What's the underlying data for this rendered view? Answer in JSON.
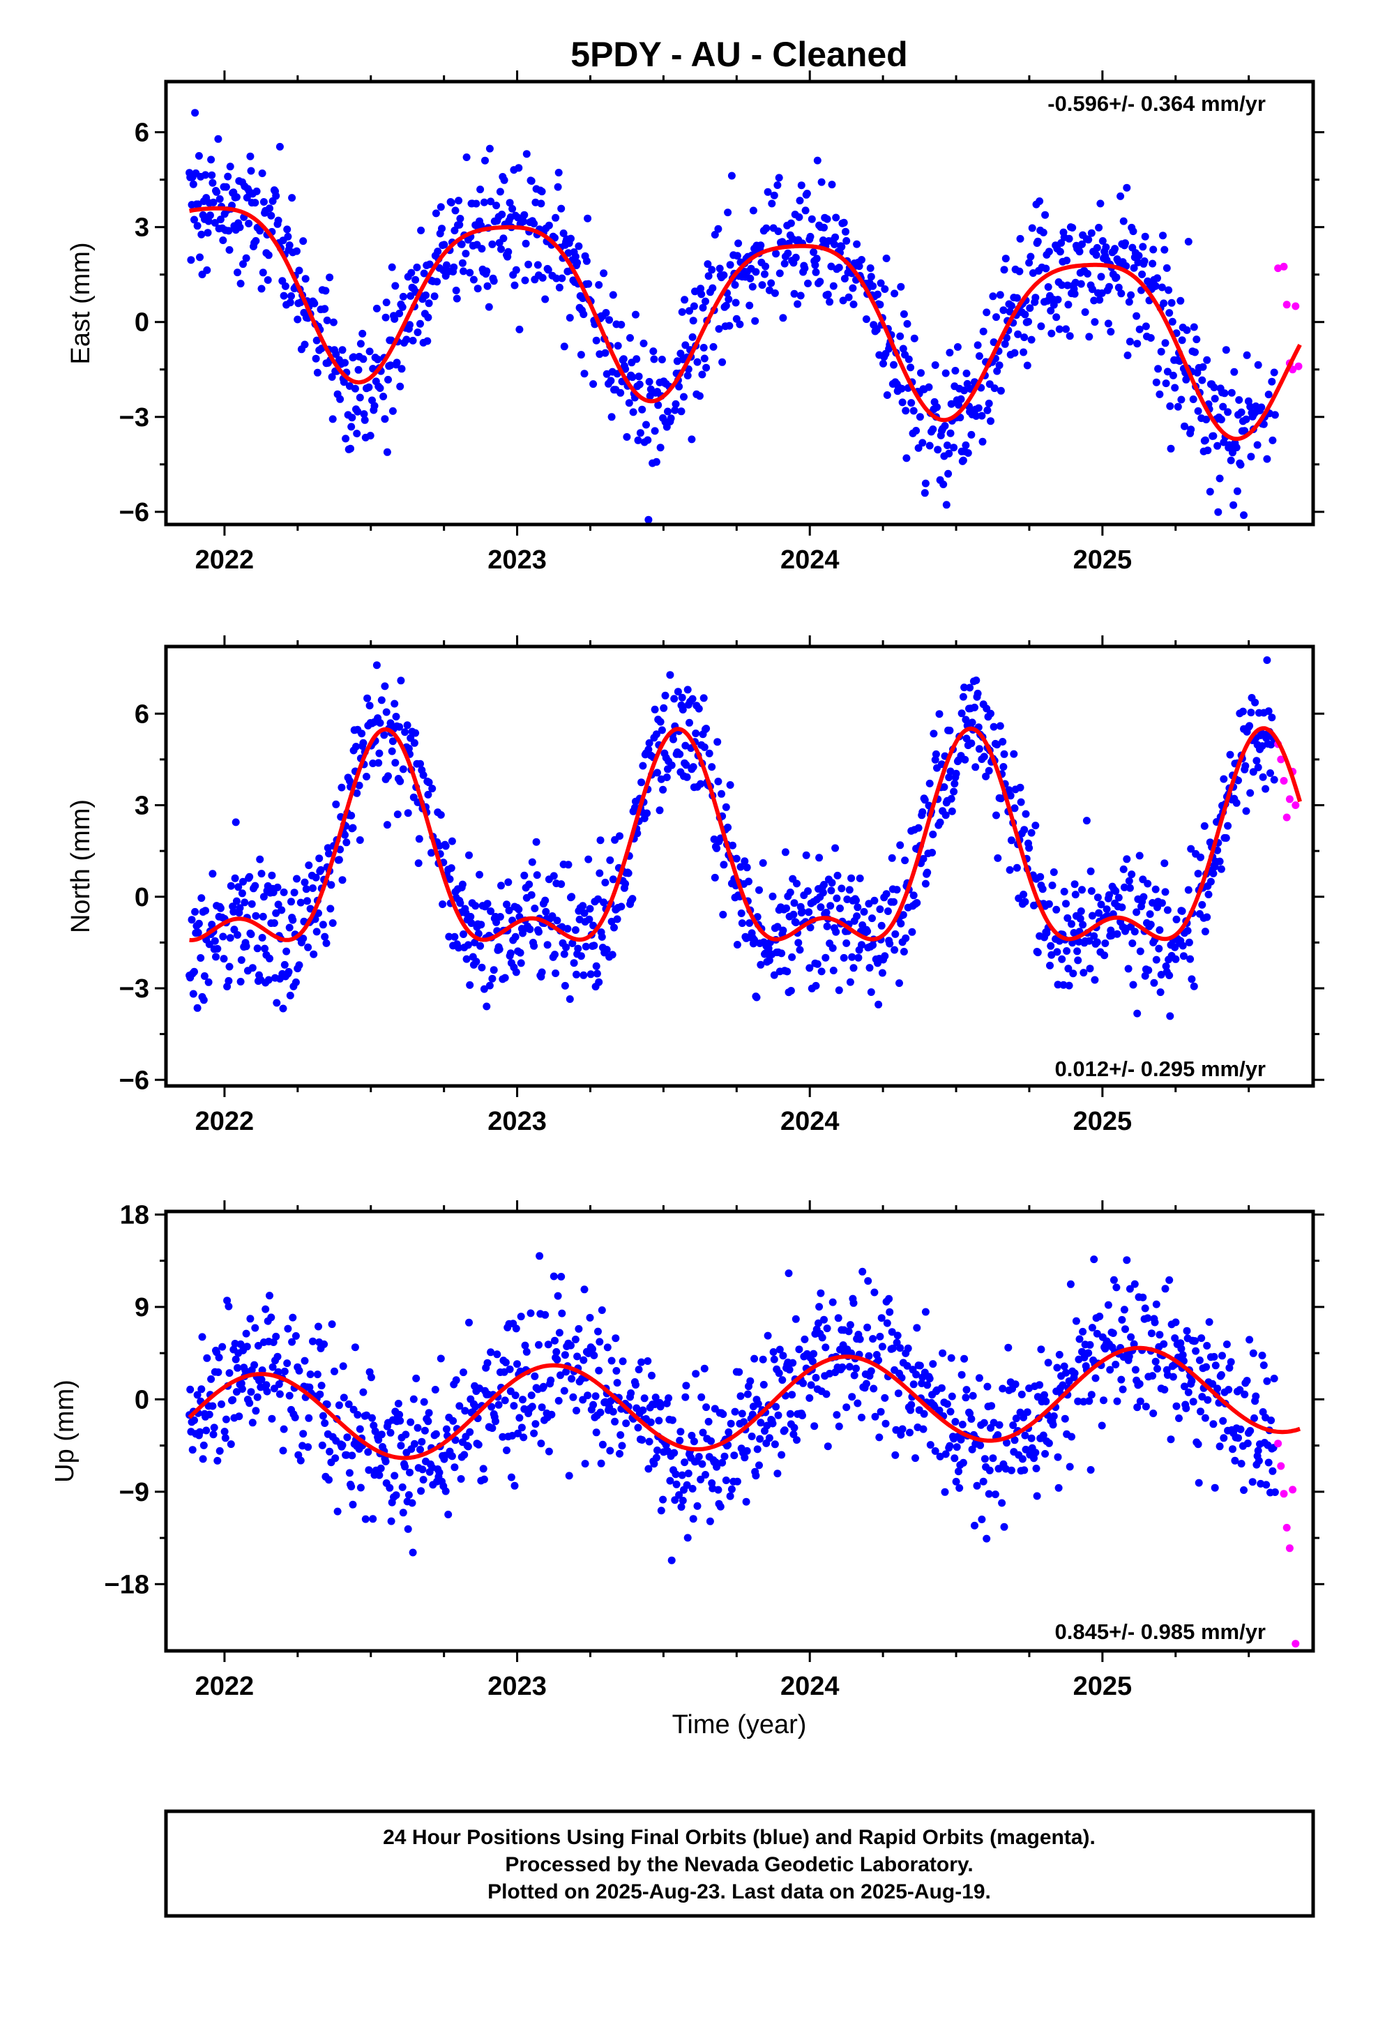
{
  "title": "5PDY  - AU - Cleaned",
  "x_axis": {
    "label": "Time (year)",
    "range": [
      2021.8,
      2025.72
    ],
    "ticks": [
      {
        "value": 2022,
        "label": "2022"
      },
      {
        "value": 2023,
        "label": "2023"
      },
      {
        "value": 2024,
        "label": "2024"
      },
      {
        "value": 2025,
        "label": "2025"
      }
    ]
  },
  "footer": {
    "lines": [
      "24 Hour Positions Using Final Orbits (blue) and Rapid Orbits (magenta).",
      "Processed by the Nevada Geodetic Laboratory.",
      "Plotted on 2025-Aug-23. Last data on 2025-Aug-19."
    ]
  },
  "colors": {
    "final_orbits": "#0000ff",
    "rapid_orbits": "#ff00ff",
    "fit": "#ff0000",
    "frame": "#000000"
  },
  "chart_data": [
    {
      "type": "scatter",
      "component": "east",
      "ylabel": "East (mm)",
      "ylim": [
        -6.4,
        7.6
      ],
      "yticks": [
        -6,
        -3,
        0,
        3,
        6
      ],
      "rate_label": "-0.596+/- 0.364 mm/yr",
      "rate_position": "top-right",
      "fit_model": {
        "offset": 0.5,
        "trend": -0.596,
        "annual_amp": 2.6,
        "annual_peak": 2022.96,
        "semi_amp": 0.55,
        "semi_peak": 2022.7
      },
      "fit_curve": [
        [
          2021.9,
          3.7
        ],
        [
          2022.0,
          3.7
        ],
        [
          2022.25,
          1.2
        ],
        [
          2022.5,
          -1.8
        ],
        [
          2022.75,
          -0.4
        ],
        [
          2023.0,
          3.2
        ],
        [
          2023.25,
          1.3
        ],
        [
          2023.5,
          -2.4
        ],
        [
          2023.75,
          -0.8
        ],
        [
          2024.0,
          2.6
        ],
        [
          2024.25,
          0.5
        ],
        [
          2024.5,
          -3.0
        ],
        [
          2024.75,
          -1.0
        ],
        [
          2025.0,
          2.0
        ],
        [
          2025.25,
          0.0
        ],
        [
          2025.55,
          -3.6
        ],
        [
          2025.68,
          -2.0
        ]
      ],
      "final_scatter_sd": 1.1,
      "rapid_points": [
        [
          2025.6,
          1.7
        ],
        [
          2025.62,
          1.75
        ],
        [
          2025.63,
          0.55
        ],
        [
          2025.64,
          -1.3
        ],
        [
          2025.65,
          -1.5
        ],
        [
          2025.66,
          0.5
        ],
        [
          2025.67,
          -1.4
        ]
      ]
    },
    {
      "type": "scatter",
      "component": "north",
      "ylabel": "North (mm)",
      "ylim": [
        -6.2,
        8.2
      ],
      "yticks": [
        -6,
        -3,
        0,
        3,
        6
      ],
      "rate_label": "0.012+/- 0.295 mm/yr",
      "rate_position": "bottom-right",
      "fit_model": {
        "offset": 0.9,
        "trend": 0.012,
        "annual_amp": 3.1,
        "annual_peak": 2022.55,
        "semi_amp": 1.5,
        "semi_peak": 2022.55
      },
      "fit_curve": [
        [
          2021.9,
          -2.0
        ],
        [
          2022.2,
          -1.7
        ],
        [
          2022.35,
          2.0
        ],
        [
          2022.55,
          5.5
        ],
        [
          2022.75,
          1.5
        ],
        [
          2022.9,
          -1.9
        ],
        [
          2023.2,
          -1.6
        ],
        [
          2023.35,
          2.0
        ],
        [
          2023.55,
          5.6
        ],
        [
          2023.75,
          1.5
        ],
        [
          2023.9,
          -1.9
        ],
        [
          2024.2,
          -1.6
        ],
        [
          2024.35,
          2.0
        ],
        [
          2024.55,
          5.5
        ],
        [
          2024.75,
          1.5
        ],
        [
          2024.9,
          -1.9
        ],
        [
          2025.2,
          -1.6
        ],
        [
          2025.35,
          2.0
        ],
        [
          2025.58,
          5.6
        ],
        [
          2025.68,
          4.0
        ]
      ],
      "final_scatter_sd": 1.05,
      "rapid_points": [
        [
          2025.6,
          5.0
        ],
        [
          2025.61,
          4.5
        ],
        [
          2025.62,
          3.8
        ],
        [
          2025.63,
          2.6
        ],
        [
          2025.64,
          3.2
        ],
        [
          2025.65,
          4.1
        ],
        [
          2025.66,
          3.0
        ]
      ]
    },
    {
      "type": "scatter",
      "component": "up",
      "ylabel": "Up (mm)",
      "ylim": [
        -24.5,
        18.3
      ],
      "yticks": [
        -18,
        -9,
        0,
        9,
        18
      ],
      "rate_label": "0.845+/- 0.985 mm/yr",
      "rate_position": "bottom-right",
      "fit_model": {
        "offset": -0.5,
        "trend": 0.845,
        "annual_amp": 4.3,
        "annual_peak": 2022.12,
        "semi_amp": 0.0,
        "semi_peak": 2022.12
      },
      "fit_curve": [
        [
          2021.9,
          -2.2
        ],
        [
          2022.1,
          3.4
        ],
        [
          2022.4,
          -3.0
        ],
        [
          2022.65,
          -5.2
        ],
        [
          2022.9,
          -1.0
        ],
        [
          2023.1,
          4.2
        ],
        [
          2023.4,
          -2.0
        ],
        [
          2023.6,
          -4.2
        ],
        [
          2023.9,
          0.0
        ],
        [
          2024.1,
          5.0
        ],
        [
          2024.4,
          -1.5
        ],
        [
          2024.6,
          -3.5
        ],
        [
          2024.9,
          1.0
        ],
        [
          2025.1,
          5.9
        ],
        [
          2025.4,
          0.5
        ],
        [
          2025.68,
          -2.6
        ]
      ],
      "final_scatter_sd": 3.6,
      "rapid_points": [
        [
          2025.6,
          -4.3
        ],
        [
          2025.61,
          -6.5
        ],
        [
          2025.62,
          -9.2
        ],
        [
          2025.63,
          -12.5
        ],
        [
          2025.64,
          -14.5
        ],
        [
          2025.65,
          -8.8
        ],
        [
          2025.66,
          -23.8
        ]
      ]
    }
  ]
}
